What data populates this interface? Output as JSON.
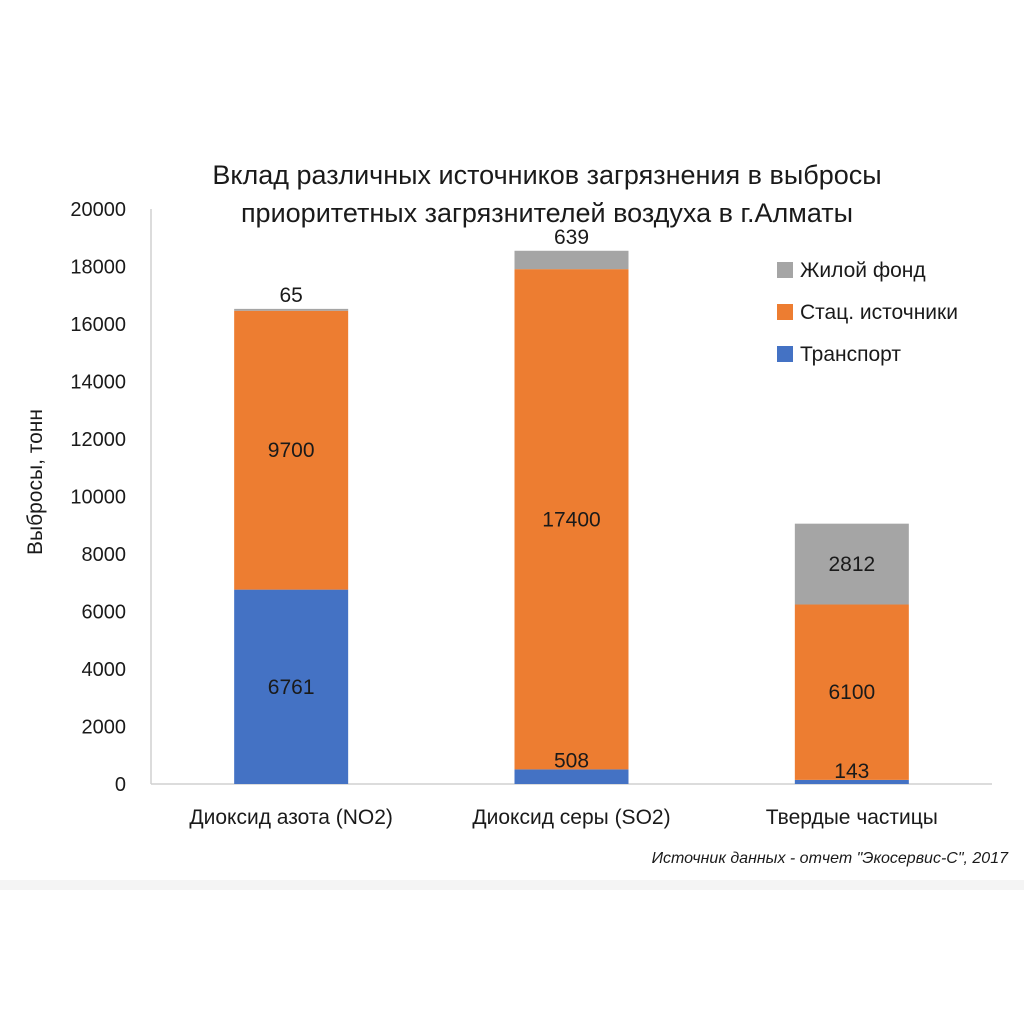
{
  "chart_data": {
    "type": "bar",
    "stacked": true,
    "title_lines": [
      "Вклад различных источников загрязнения в выбросы",
      "приоритетных загрязнителей воздуха в г.Алматы"
    ],
    "ylabel": "Выбросы, тонн",
    "xlabel": "",
    "ylim": [
      0,
      20000
    ],
    "yticks": [
      "0",
      "2000",
      "4000",
      "6000",
      "8000",
      "10000",
      "12000",
      "14000",
      "16000",
      "18000",
      "20000"
    ],
    "categories": [
      "Диоксид азота (NO2)",
      "Диоксид серы (SO2)",
      "Твердые частицы"
    ],
    "series": [
      {
        "name": "Транспорт",
        "color": "#4472c4",
        "values": [
          6761,
          508,
          143
        ],
        "labels": [
          "6761",
          "508",
          "143"
        ]
      },
      {
        "name": "Стац. источники",
        "color": "#ed7d31",
        "values": [
          9700,
          17400,
          6100
        ],
        "labels": [
          "9700",
          "17400",
          "6100"
        ]
      },
      {
        "name": "Жилой фонд",
        "color": "#a5a5a5",
        "values": [
          65,
          639,
          2812
        ],
        "labels": [
          "65",
          "639",
          "2812"
        ]
      }
    ],
    "legend": {
      "placement": "top-right",
      "order": [
        "Жилой фонд",
        "Стац. источники",
        "Транспорт"
      ]
    },
    "grid": false,
    "source_note": "Источник данных - отчет \"Экосервис-С\", 2017"
  }
}
